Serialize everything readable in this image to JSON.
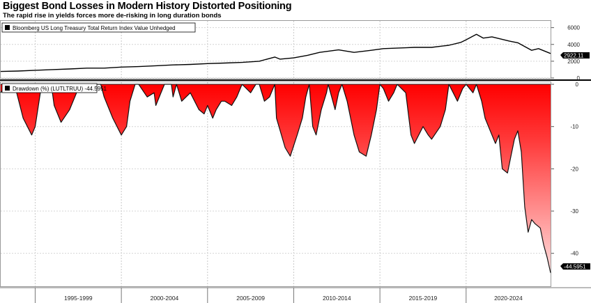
{
  "title": "Biggest Bond Losses in Modern History Distorted Positioning",
  "subtitle": "The rapid rise in yields forces more de-risking in long duration bonds",
  "chart_data": [
    {
      "type": "line",
      "legend": "Bloomberg US Long Treasury Total Return Index Value Unhedged",
      "last_value_label": "2922.11",
      "ylim": [
        0,
        6800
      ],
      "yticks": [
        "0",
        "2000",
        "4000",
        "6000"
      ],
      "xlim": [
        1993.0,
        2024.9
      ],
      "series": [
        {
          "x": [
            1993.0,
            1994.0,
            1995.0,
            1996.0,
            1997.0,
            1998.0,
            1999.0,
            2000.0,
            2001.0,
            2002.0,
            2003.0,
            2004.0,
            2005.0,
            2006.0,
            2007.0,
            2008.0,
            2008.9,
            2009.2,
            2010.0,
            2010.8,
            2011.5,
            2012.6,
            2013.5,
            2014.5,
            2015.2,
            2016.5,
            2017.0,
            2018.0,
            2019.0,
            2019.7,
            2020.0,
            2020.6,
            2021.0,
            2021.5,
            2022.0,
            2022.5,
            2023.0,
            2023.8,
            2024.2,
            2024.9
          ],
          "y": [
            780,
            830,
            920,
            1000,
            1080,
            1180,
            1180,
            1300,
            1360,
            1460,
            1560,
            1620,
            1720,
            1780,
            1860,
            2000,
            2500,
            2250,
            2400,
            2700,
            3050,
            3350,
            3050,
            3300,
            3500,
            3600,
            3650,
            3650,
            3900,
            4250,
            4550,
            5200,
            4750,
            4900,
            4650,
            4400,
            4200,
            3300,
            3500,
            2922
          ]
        }
      ]
    },
    {
      "type": "area",
      "legend": "Drawdown (%) (LUTLTRUU) -44.5951",
      "last_value_label": "-44.5951",
      "ylim": [
        -47.8,
        0.5
      ],
      "yticks": [
        "0",
        "-10",
        "-20",
        "-30",
        "-40"
      ],
      "xlim": [
        1993.0,
        2024.9
      ],
      "xtick_labels": [
        "1995-1999",
        "2000-2004",
        "2005-2009",
        "2010-2014",
        "2015-2019",
        "2020-2024"
      ],
      "series": [
        {
          "x": [
            1993.0,
            1993.3,
            1993.8,
            1994.3,
            1994.8,
            1995.0,
            1995.3,
            1995.6,
            1995.8,
            1996.0,
            1996.1,
            1996.5,
            1997.0,
            1997.3,
            1997.5,
            1997.7,
            1998.0,
            1998.5,
            1998.8,
            1999.0,
            1999.5,
            2000.0,
            2000.3,
            2000.5,
            2000.8,
            2001.0,
            2001.5,
            2001.9,
            2002.0,
            2002.5,
            2002.9,
            2003.0,
            2003.2,
            2003.5,
            2004.0,
            2004.5,
            2004.8,
            2005.0,
            2005.3,
            2005.5,
            2005.8,
            2006.0,
            2006.4,
            2006.7,
            2007.0,
            2007.5,
            2007.8,
            2008.0,
            2008.3,
            2008.6,
            2008.9,
            2009.0,
            2009.5,
            2009.8,
            2010.2,
            2010.5,
            2010.7,
            2010.9,
            2011.1,
            2011.3,
            2011.6,
            2011.9,
            2012.0,
            2012.2,
            2012.4,
            2012.6,
            2012.8,
            2013.1,
            2013.5,
            2013.8,
            2014.2,
            2014.5,
            2014.8,
            2015.0,
            2015.2,
            2015.5,
            2015.8,
            2016.0,
            2016.5,
            2016.8,
            2017.0,
            2017.5,
            2017.8,
            2018.0,
            2018.5,
            2018.8,
            2019.0,
            2019.5,
            2019.8,
            2020.0,
            2020.4,
            2020.6,
            2020.9,
            2021.1,
            2021.4,
            2021.7,
            2021.9,
            2022.1,
            2022.4,
            2022.6,
            2022.8,
            2023.0,
            2023.2,
            2023.4,
            2023.6,
            2023.8,
            2024.0,
            2024.3,
            2024.5,
            2024.7,
            2024.9
          ],
          "y": [
            -2,
            0,
            0,
            -8,
            -12,
            -10,
            -2,
            0,
            0,
            -2,
            -5,
            -9,
            -6,
            -3,
            -1,
            0,
            0,
            0,
            0,
            -3,
            -8,
            -12,
            -10,
            -4,
            0,
            0,
            -3,
            -2,
            -5,
            0,
            0,
            -3,
            0,
            -4,
            -2,
            -6,
            -7,
            -5,
            -8,
            -6,
            -4,
            -4,
            -5,
            -3,
            0,
            -2,
            0,
            0,
            -4,
            -3,
            0,
            -8,
            -15,
            -17,
            -12,
            -8,
            -3,
            0,
            -10,
            -12,
            -6,
            -2,
            0,
            -3,
            -6,
            -2,
            0,
            -4,
            -12,
            -16,
            -17,
            -12,
            -6,
            0,
            -1,
            -4,
            -2,
            0,
            -2,
            -12,
            -14,
            -10,
            -12,
            -13,
            -10,
            -6,
            0,
            -4,
            -1,
            0,
            -2,
            0,
            -4,
            -8,
            -11,
            -14,
            -12,
            -20,
            -21,
            -17,
            -13,
            -11,
            -16,
            -29,
            -35,
            -32,
            -33,
            -34,
            -38,
            -41,
            -44.5951
          ]
        }
      ]
    }
  ]
}
